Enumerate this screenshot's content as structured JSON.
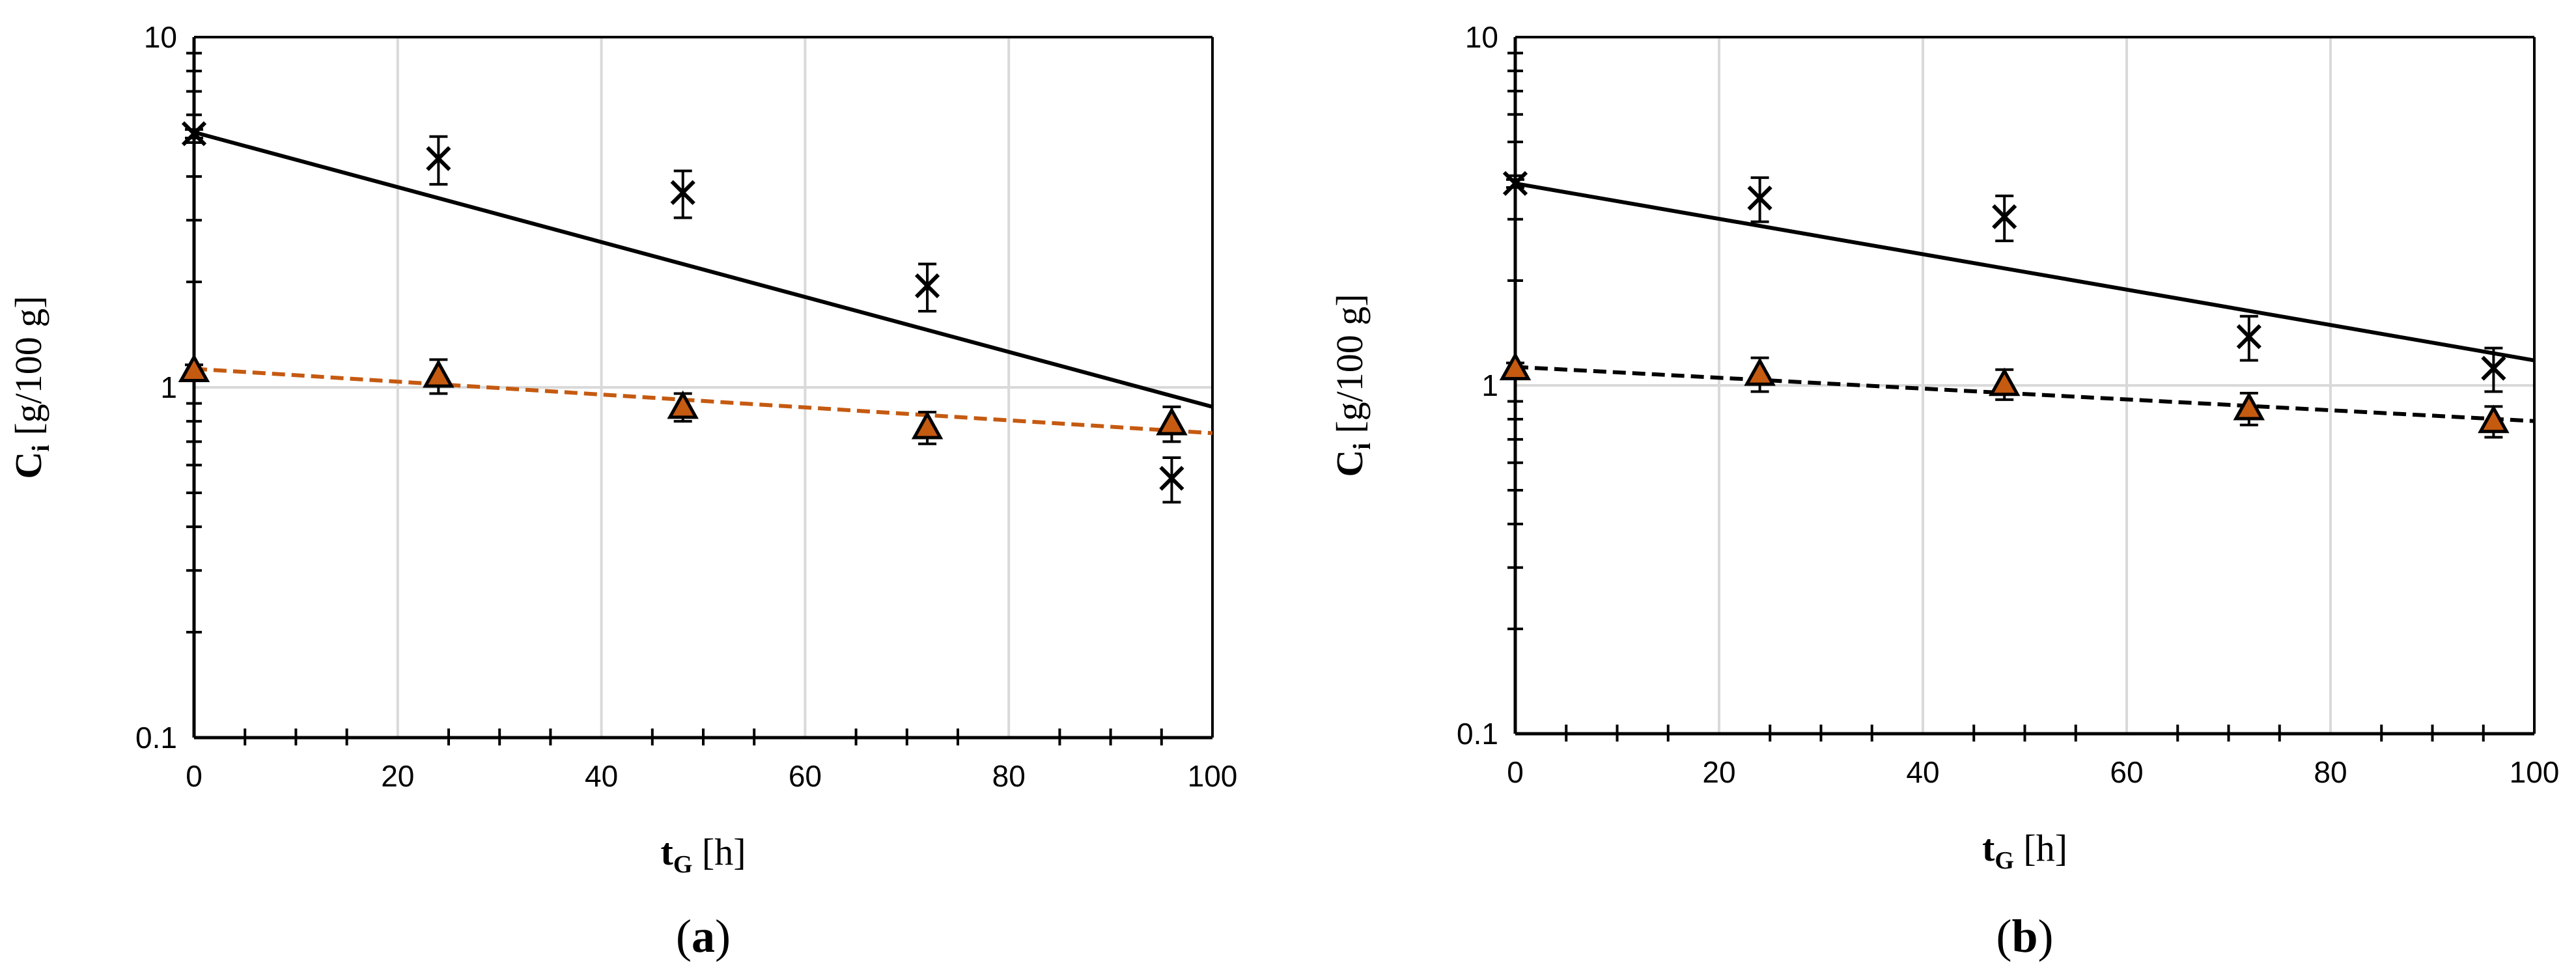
{
  "chart_data": [
    {
      "type": "scatter",
      "panel_label": {
        "open": "(",
        "letter": "a",
        "close": ")"
      },
      "xlabel": {
        "main": "t",
        "sub": "G",
        "unit": " [h]"
      },
      "ylabel": {
        "main": "C",
        "sub": "i",
        "unit": " [g/100 g]"
      },
      "xlim": [
        0,
        100
      ],
      "ylim": [
        0.1,
        10
      ],
      "y_scale": "log",
      "grid": true,
      "x_ticks": [
        "0",
        "20",
        "40",
        "60",
        "80",
        "100"
      ],
      "y_ticks": [
        "0.1",
        "1",
        "10"
      ],
      "series": [
        {
          "marker": "cross",
          "color": "#000000",
          "x": [
            0,
            24,
            48,
            72,
            96
          ],
          "y": [
            5.3,
            4.5,
            3.6,
            1.95,
            0.55
          ],
          "err": [
            0.15,
            0.7,
            0.55,
            0.3,
            0.08
          ]
        },
        {
          "marker": "triangle",
          "color": "#c55a11",
          "x": [
            0,
            24,
            48,
            72,
            96
          ],
          "y": [
            1.12,
            1.08,
            0.88,
            0.77,
            0.79
          ],
          "err": [
            0.04,
            0.12,
            0.08,
            0.08,
            0.09
          ]
        }
      ],
      "fits": [
        {
          "style": "solid",
          "color": "#000000",
          "x": [
            0,
            100
          ],
          "y": [
            5.35,
            0.88
          ]
        },
        {
          "style": "dashed",
          "color": "#c55a11",
          "x": [
            0,
            100
          ],
          "y": [
            1.13,
            0.74
          ]
        }
      ]
    },
    {
      "type": "scatter",
      "panel_label": {
        "open": "(",
        "letter": "b",
        "close": ")"
      },
      "xlabel": {
        "main": "t",
        "sub": "G",
        "unit": " [h]"
      },
      "ylabel": {
        "main": "C",
        "sub": "i",
        "unit": " [g/100 g]"
      },
      "xlim": [
        0,
        100
      ],
      "ylim": [
        0.1,
        10
      ],
      "y_scale": "log",
      "grid": true,
      "x_ticks": [
        "0",
        "20",
        "40",
        "60",
        "80",
        "100"
      ],
      "y_ticks": [
        "0.1",
        "1",
        "10"
      ],
      "series": [
        {
          "marker": "cross",
          "color": "#000000",
          "x": [
            0,
            24,
            48,
            72,
            96
          ],
          "y": [
            3.8,
            3.45,
            3.05,
            1.38,
            1.12
          ],
          "err": [
            0.1,
            0.5,
            0.45,
            0.2,
            0.16
          ]
        },
        {
          "marker": "triangle",
          "color": "#c55a11",
          "x": [
            0,
            24,
            48,
            72,
            96
          ],
          "y": [
            1.12,
            1.08,
            1.01,
            0.86,
            0.79
          ],
          "err": [
            0.04,
            0.12,
            0.1,
            0.09,
            0.08
          ]
        }
      ],
      "fits": [
        {
          "style": "solid",
          "color": "#000000",
          "x": [
            0,
            100
          ],
          "y": [
            3.8,
            1.18
          ]
        },
        {
          "style": "dashed",
          "color": "#000000",
          "x": [
            0,
            100
          ],
          "y": [
            1.13,
            0.79
          ]
        }
      ]
    }
  ]
}
